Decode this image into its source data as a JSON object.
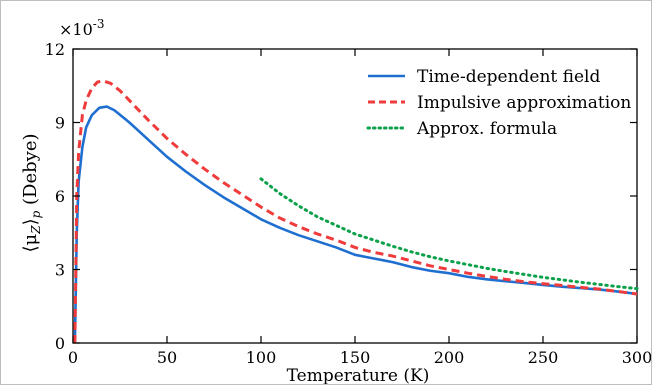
{
  "chart_data": {
    "type": "line",
    "xlabel": "Temperature (K)",
    "ylabel_main": "⟨μ",
    "ylabel_sub": "Z",
    "ylabel_close": "⟩",
    "ylabel_p": "p",
    "ylabel_unit": "(Debye)",
    "y_multiplier": "×10",
    "y_multiplier_exp": "-3",
    "xlim": [
      0,
      300
    ],
    "ylim": [
      0,
      12
    ],
    "x_ticks": [
      "0",
      "50",
      "100",
      "150",
      "200",
      "250",
      "300"
    ],
    "y_ticks": [
      "0",
      "3",
      "6",
      "9",
      "12"
    ],
    "legend_position": "top-right",
    "series": [
      {
        "name": "Time-dependent field",
        "color": "#1f6fd1",
        "style": "solid",
        "x": [
          1,
          2,
          3,
          5,
          7,
          10,
          14,
          18,
          22,
          30,
          40,
          50,
          60,
          70,
          80,
          90,
          100,
          110,
          120,
          130,
          140,
          150,
          160,
          170,
          180,
          190,
          200,
          210,
          220,
          230,
          240,
          250,
          260,
          270,
          280,
          290,
          300
        ],
        "y": [
          0.0,
          4.5,
          6.6,
          8.0,
          8.8,
          9.3,
          9.6,
          9.65,
          9.5,
          9.0,
          8.3,
          7.6,
          7.0,
          6.45,
          5.95,
          5.5,
          5.05,
          4.7,
          4.4,
          4.15,
          3.9,
          3.6,
          3.45,
          3.3,
          3.1,
          2.95,
          2.85,
          2.7,
          2.6,
          2.52,
          2.45,
          2.37,
          2.3,
          2.24,
          2.18,
          2.1,
          2.0
        ]
      },
      {
        "name": "Impulsive approximation",
        "color": "#ef3b3b",
        "style": "dashed",
        "x": [
          1,
          2,
          3,
          5,
          7,
          10,
          13,
          16,
          20,
          25,
          30,
          40,
          50,
          60,
          70,
          80,
          90,
          100,
          110,
          120,
          130,
          140,
          150,
          160,
          170,
          180,
          190,
          200,
          210,
          220,
          230,
          240,
          250,
          260,
          270,
          280,
          290,
          300
        ],
        "y": [
          0.0,
          6.0,
          7.8,
          9.3,
          9.9,
          10.4,
          10.65,
          10.7,
          10.6,
          10.3,
          9.9,
          9.1,
          8.35,
          7.7,
          7.1,
          6.55,
          6.05,
          5.55,
          5.1,
          4.75,
          4.45,
          4.2,
          3.9,
          3.7,
          3.55,
          3.35,
          3.15,
          3.0,
          2.85,
          2.72,
          2.6,
          2.5,
          2.42,
          2.35,
          2.27,
          2.2,
          2.1,
          2.0
        ]
      },
      {
        "name": "Approx. formula",
        "color": "#0aa14a",
        "style": "dotted",
        "x": [
          100,
          110,
          120,
          130,
          140,
          150,
          160,
          170,
          180,
          190,
          200,
          210,
          220,
          230,
          240,
          250,
          260,
          270,
          280,
          290,
          300
        ],
        "y": [
          6.7,
          6.1,
          5.6,
          5.15,
          4.8,
          4.45,
          4.2,
          3.95,
          3.72,
          3.52,
          3.35,
          3.2,
          3.05,
          2.92,
          2.8,
          2.68,
          2.58,
          2.48,
          2.39,
          2.3,
          2.22
        ]
      }
    ]
  }
}
